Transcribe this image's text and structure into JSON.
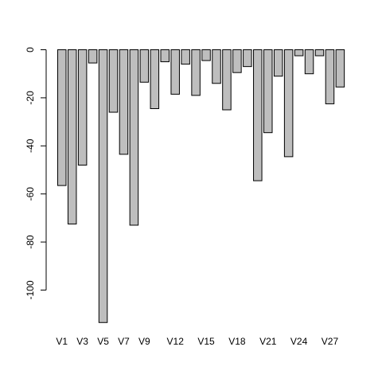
{
  "chart_data": {
    "type": "bar",
    "title": "",
    "xlabel": "",
    "ylabel": "",
    "ylim": [
      -113.5,
      0
    ],
    "yticks": [
      0,
      -20,
      -40,
      -60,
      -80,
      -100
    ],
    "ytick_labels": [
      "0",
      "-20",
      "-40",
      "-60",
      "-80",
      "-100"
    ],
    "categories": [
      "V1",
      "V2",
      "V3",
      "V4",
      "V5",
      "V6",
      "V7",
      "V8",
      "V9",
      "V10",
      "V11",
      "V12",
      "V13",
      "V14",
      "V15",
      "V16",
      "V17",
      "V18",
      "V19",
      "V20",
      "V21",
      "V22",
      "V23",
      "V24",
      "V25",
      "V26",
      "V27",
      "V28"
    ],
    "visible_category_labels": [
      "V1",
      "V3",
      "V5",
      "V7",
      "V9",
      "V12",
      "V15",
      "V18",
      "V21",
      "V24",
      "V27"
    ],
    "values": [
      -56.5,
      -72.5,
      -48,
      -5.5,
      -113.5,
      -26,
      -43.5,
      -73,
      -13.5,
      -24.5,
      -5,
      -18.5,
      -6,
      -19,
      -4.5,
      -14,
      -25,
      -9.5,
      -7,
      -54.5,
      -34.5,
      -11,
      -44.5,
      -2.5,
      -10,
      -2.5,
      -22.5,
      -15.5
    ],
    "bar_color": "#bebebe",
    "edge_color": "#000000",
    "grid": false
  }
}
